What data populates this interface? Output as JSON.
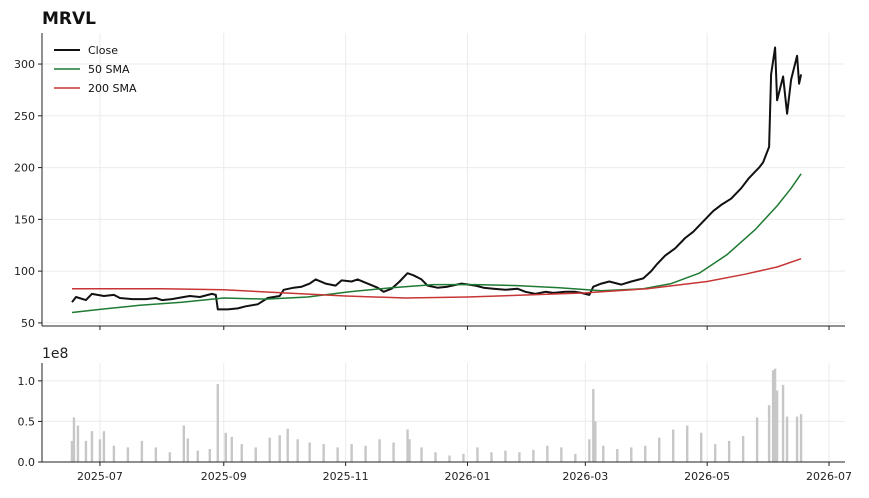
{
  "chart_data": [
    {
      "type": "line",
      "title": "MRVL",
      "xlabel": "",
      "ylabel": "",
      "xlim": [
        "2025-06-02",
        "2026-07-09"
      ],
      "ylim": [
        47,
        330
      ],
      "yticks": [
        50,
        100,
        150,
        200,
        250,
        300
      ],
      "xticks": [
        {
          "date": "2025-07-01",
          "label": "2025-07"
        },
        {
          "date": "2025-09-01",
          "label": "2025-09"
        },
        {
          "date": "2025-11-01",
          "label": "2025-11"
        },
        {
          "date": "2026-01-01",
          "label": "2026-01"
        },
        {
          "date": "2026-03-01",
          "label": "2026-03"
        },
        {
          "date": "2026-05-01",
          "label": "2026-05"
        },
        {
          "date": "2026-07-01",
          "label": "2026-07"
        }
      ],
      "grid": true,
      "legend": "top-left",
      "series": [
        {
          "name": "Close",
          "color": "#111111",
          "points": [
            [
              "2025-06-17",
              70
            ],
            [
              "2025-06-19",
              75
            ],
            [
              "2025-06-24",
              72
            ],
            [
              "2025-06-27",
              78
            ],
            [
              "2025-07-03",
              76
            ],
            [
              "2025-07-08",
              77
            ],
            [
              "2025-07-11",
              74
            ],
            [
              "2025-07-17",
              73
            ],
            [
              "2025-07-24",
              73
            ],
            [
              "2025-07-29",
              74
            ],
            [
              "2025-08-01",
              72
            ],
            [
              "2025-08-06",
              73
            ],
            [
              "2025-08-12",
              75
            ],
            [
              "2025-08-15",
              76
            ],
            [
              "2025-08-20",
              75
            ],
            [
              "2025-08-26",
              78
            ],
            [
              "2025-08-28",
              77
            ],
            [
              "2025-08-29",
              63
            ],
            [
              "2025-09-03",
              63
            ],
            [
              "2025-09-08",
              64
            ],
            [
              "2025-09-12",
              66
            ],
            [
              "2025-09-18",
              68
            ],
            [
              "2025-09-23",
              74
            ],
            [
              "2025-09-29",
              76
            ],
            [
              "2025-10-01",
              82
            ],
            [
              "2025-10-06",
              84
            ],
            [
              "2025-10-10",
              85
            ],
            [
              "2025-10-14",
              88
            ],
            [
              "2025-10-17",
              92
            ],
            [
              "2025-10-22",
              88
            ],
            [
              "2025-10-27",
              86
            ],
            [
              "2025-10-30",
              91
            ],
            [
              "2025-11-04",
              90
            ],
            [
              "2025-11-07",
              92
            ],
            [
              "2025-11-12",
              88
            ],
            [
              "2025-11-17",
              84
            ],
            [
              "2025-11-20",
              80
            ],
            [
              "2025-11-24",
              83
            ],
            [
              "2025-11-28",
              90
            ],
            [
              "2025-12-02",
              98
            ],
            [
              "2025-12-05",
              96
            ],
            [
              "2025-12-09",
              92
            ],
            [
              "2025-12-12",
              86
            ],
            [
              "2025-12-17",
              84
            ],
            [
              "2025-12-22",
              85
            ],
            [
              "2025-12-29",
              88
            ],
            [
              "2026-01-05",
              86
            ],
            [
              "2026-01-09",
              84
            ],
            [
              "2026-01-14",
              83
            ],
            [
              "2026-01-20",
              82
            ],
            [
              "2026-01-26",
              83
            ],
            [
              "2026-01-30",
              80
            ],
            [
              "2026-02-04",
              78
            ],
            [
              "2026-02-09",
              80
            ],
            [
              "2026-02-13",
              79
            ],
            [
              "2026-02-19",
              80
            ],
            [
              "2026-02-24",
              80
            ],
            [
              "2026-02-27",
              79
            ],
            [
              "2026-03-03",
              77
            ],
            [
              "2026-03-05",
              85
            ],
            [
              "2026-03-09",
              88
            ],
            [
              "2026-03-13",
              90
            ],
            [
              "2026-03-19",
              87
            ],
            [
              "2026-03-24",
              90
            ],
            [
              "2026-03-30",
              93
            ],
            [
              "2026-04-03",
              100
            ],
            [
              "2026-04-06",
              107
            ],
            [
              "2026-04-10",
              115
            ],
            [
              "2026-04-15",
              122
            ],
            [
              "2026-04-20",
              132
            ],
            [
              "2026-04-24",
              138
            ],
            [
              "2026-04-29",
              148
            ],
            [
              "2026-05-04",
              158
            ],
            [
              "2026-05-08",
              164
            ],
            [
              "2026-05-13",
              170
            ],
            [
              "2026-05-18",
              180
            ],
            [
              "2026-05-22",
              190
            ],
            [
              "2026-05-27",
              200
            ],
            [
              "2026-05-29",
              205
            ],
            [
              "2026-06-01",
              220
            ],
            [
              "2026-06-02",
              290
            ],
            [
              "2026-06-04",
              316
            ],
            [
              "2026-06-05",
              265
            ],
            [
              "2026-06-08",
              288
            ],
            [
              "2026-06-10",
              252
            ],
            [
              "2026-06-12",
              285
            ],
            [
              "2026-06-15",
              308
            ],
            [
              "2026-06-16",
              281
            ],
            [
              "2026-06-17",
              290
            ]
          ]
        },
        {
          "name": "50 SMA",
          "color": "#1f7a33",
          "points": [
            [
              "2025-06-17",
              60
            ],
            [
              "2025-07-01",
              63
            ],
            [
              "2025-07-21",
              67
            ],
            [
              "2025-08-11",
              70
            ],
            [
              "2025-09-01",
              74
            ],
            [
              "2025-09-22",
              73
            ],
            [
              "2025-10-13",
              75
            ],
            [
              "2025-11-03",
              80
            ],
            [
              "2025-11-24",
              84
            ],
            [
              "2025-12-15",
              87
            ],
            [
              "2026-01-05",
              87
            ],
            [
              "2026-01-26",
              86
            ],
            [
              "2026-02-16",
              84
            ],
            [
              "2026-03-09",
              81
            ],
            [
              "2026-03-30",
              83
            ],
            [
              "2026-04-13",
              88
            ],
            [
              "2026-04-27",
              98
            ],
            [
              "2026-05-11",
              116
            ],
            [
              "2026-05-25",
              140
            ],
            [
              "2026-06-05",
              163
            ],
            [
              "2026-06-12",
              180
            ],
            [
              "2026-06-17",
              194
            ]
          ]
        },
        {
          "name": "200 SMA",
          "color": "#c73535",
          "points": [
            [
              "2025-06-17",
              83
            ],
            [
              "2025-08-01",
              83
            ],
            [
              "2025-09-01",
              82
            ],
            [
              "2025-10-01",
              79
            ],
            [
              "2025-11-01",
              76
            ],
            [
              "2025-12-01",
              74
            ],
            [
              "2026-01-01",
              75
            ],
            [
              "2026-02-01",
              77
            ],
            [
              "2026-03-01",
              79
            ],
            [
              "2026-04-01",
              83
            ],
            [
              "2026-05-01",
              90
            ],
            [
              "2026-05-20",
              97
            ],
            [
              "2026-06-05",
              104
            ],
            [
              "2026-06-17",
              112
            ]
          ]
        }
      ]
    },
    {
      "type": "bar",
      "title": "",
      "xlabel": "",
      "ylabel": "",
      "offset_text": "1e8",
      "ylim": [
        0,
        1.22
      ],
      "yticks": [
        0.0,
        0.5,
        1.0
      ],
      "ytick_labels": [
        "0.0",
        "0.5",
        "1.0"
      ],
      "grid": true,
      "color": "#c7c7c7",
      "series": [
        {
          "name": "",
          "points": [
            [
              "2025-06-17",
              0.26
            ],
            [
              "2025-06-18",
              0.55
            ],
            [
              "2025-06-20",
              0.45
            ],
            [
              "2025-06-24",
              0.26
            ],
            [
              "2025-06-27",
              0.38
            ],
            [
              "2025-07-01",
              0.28
            ],
            [
              "2025-07-03",
              0.38
            ],
            [
              "2025-07-08",
              0.2
            ],
            [
              "2025-07-15",
              0.18
            ],
            [
              "2025-07-22",
              0.26
            ],
            [
              "2025-07-29",
              0.18
            ],
            [
              "2025-08-05",
              0.12
            ],
            [
              "2025-08-12",
              0.45
            ],
            [
              "2025-08-14",
              0.29
            ],
            [
              "2025-08-19",
              0.14
            ],
            [
              "2025-08-25",
              0.16
            ],
            [
              "2025-08-29",
              0.96
            ],
            [
              "2025-09-02",
              0.36
            ],
            [
              "2025-09-05",
              0.31
            ],
            [
              "2025-09-10",
              0.22
            ],
            [
              "2025-09-17",
              0.18
            ],
            [
              "2025-09-24",
              0.3
            ],
            [
              "2025-09-29",
              0.33
            ],
            [
              "2025-10-03",
              0.41
            ],
            [
              "2025-10-08",
              0.28
            ],
            [
              "2025-10-14",
              0.24
            ],
            [
              "2025-10-21",
              0.22
            ],
            [
              "2025-10-28",
              0.18
            ],
            [
              "2025-11-04",
              0.22
            ],
            [
              "2025-11-11",
              0.2
            ],
            [
              "2025-11-18",
              0.28
            ],
            [
              "2025-11-25",
              0.24
            ],
            [
              "2025-12-02",
              0.4
            ],
            [
              "2025-12-03",
              0.28
            ],
            [
              "2025-12-09",
              0.18
            ],
            [
              "2025-12-16",
              0.12
            ],
            [
              "2025-12-23",
              0.08
            ],
            [
              "2025-12-30",
              0.1
            ],
            [
              "2026-01-06",
              0.18
            ],
            [
              "2026-01-13",
              0.12
            ],
            [
              "2026-01-20",
              0.14
            ],
            [
              "2026-01-27",
              0.12
            ],
            [
              "2026-02-03",
              0.15
            ],
            [
              "2026-02-10",
              0.2
            ],
            [
              "2026-02-17",
              0.18
            ],
            [
              "2026-02-24",
              0.1
            ],
            [
              "2026-03-03",
              0.28
            ],
            [
              "2026-03-05",
              0.9
            ],
            [
              "2026-03-06",
              0.5
            ],
            [
              "2026-03-10",
              0.2
            ],
            [
              "2026-03-17",
              0.16
            ],
            [
              "2026-03-24",
              0.18
            ],
            [
              "2026-03-31",
              0.2
            ],
            [
              "2026-04-07",
              0.3
            ],
            [
              "2026-04-14",
              0.4
            ],
            [
              "2026-04-21",
              0.45
            ],
            [
              "2026-04-28",
              0.36
            ],
            [
              "2026-05-05",
              0.22
            ],
            [
              "2026-05-12",
              0.26
            ],
            [
              "2026-05-19",
              0.32
            ],
            [
              "2026-05-26",
              0.55
            ],
            [
              "2026-06-01",
              0.7
            ],
            [
              "2026-06-03",
              1.13
            ],
            [
              "2026-06-04",
              1.15
            ],
            [
              "2026-06-05",
              0.88
            ],
            [
              "2026-06-08",
              0.95
            ],
            [
              "2026-06-10",
              0.56
            ],
            [
              "2026-06-15",
              0.56
            ],
            [
              "2026-06-17",
              0.59
            ]
          ]
        }
      ]
    }
  ]
}
